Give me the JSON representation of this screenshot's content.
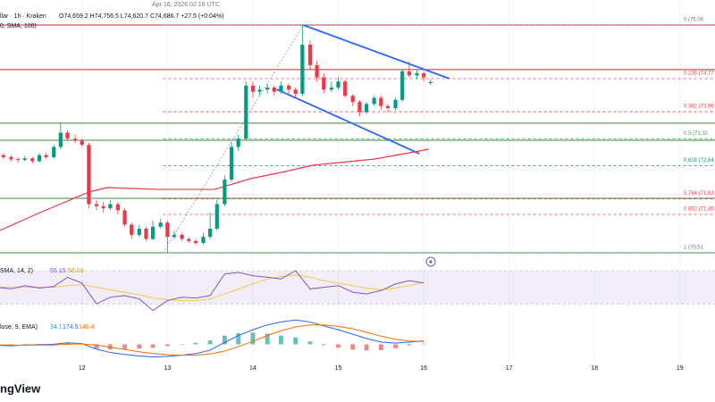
{
  "chart_data": {
    "type": "candlestick",
    "header": {
      "published": "Apr 16, 2026 02:16 UTC",
      "symbol": "llar · 1h · Kraken",
      "ohlc": "O74,659.2 H74,756.5 L74,620.7 C74,686.7 +27.5 (+0.04%)",
      "overlay": "0, SMA, 100)"
    },
    "x": [
      11,
      11.08,
      11.17,
      11.25,
      11.33,
      11.42,
      11.5,
      11.58,
      11.67,
      11.75,
      11.83,
      11.92,
      12,
      12.08,
      12.17,
      12.25,
      12.33,
      12.42,
      12.5,
      12.58,
      12.67,
      12.75,
      12.83,
      12.92,
      13,
      13.08,
      13.17,
      13.25,
      13.33,
      13.42,
      13.5,
      13.58,
      13.67,
      13.75,
      13.83,
      13.92,
      14,
      14.08,
      14.17,
      14.25,
      14.33,
      14.42,
      14.5,
      14.58,
      14.67,
      14.75,
      14.83,
      14.92,
      15,
      15.08,
      15.17,
      15.25,
      15.33,
      15.42,
      15.5,
      15.58,
      15.67,
      15.75,
      15.83,
      15.92,
      16,
      16.08
    ],
    "open": [
      72950,
      72900,
      72850,
      72800,
      72780,
      72820,
      72750,
      72900,
      72850,
      73100,
      73450,
      73300,
      73250,
      73150,
      71700,
      71650,
      71600,
      71700,
      71550,
      71200,
      70950,
      71100,
      70850,
      71150,
      71250,
      70900,
      70950,
      70850,
      70800,
      70750,
      70900,
      71100,
      71700,
      72300,
      73100,
      73300,
      74600,
      74450,
      74500,
      74550,
      74450,
      74600,
      74500,
      74400,
      75600,
      75100,
      74800,
      74500,
      74550,
      74700,
      74350,
      74200,
      73950,
      74150,
      74300,
      74100,
      74050,
      74250,
      74950,
      74850,
      74900,
      74659.2
    ],
    "high": [
      73000,
      72950,
      72900,
      72850,
      72880,
      72850,
      72950,
      72950,
      73150,
      73700,
      73500,
      73400,
      73300,
      73200,
      71800,
      71750,
      71800,
      71750,
      71600,
      71250,
      71200,
      71150,
      71300,
      71350,
      71300,
      71050,
      71000,
      70900,
      70850,
      71000,
      71500,
      71800,
      72400,
      73200,
      73400,
      74700,
      74700,
      74600,
      74650,
      74600,
      74700,
      74650,
      74550,
      76080,
      75700,
      75200,
      74900,
      74700,
      74800,
      74750,
      74400,
      74250,
      74200,
      74350,
      74350,
      74150,
      74300,
      75000,
      75200,
      75000,
      74950,
      74756.5
    ],
    "low": [
      72850,
      72800,
      72750,
      72720,
      72750,
      72700,
      72720,
      72800,
      72820,
      73050,
      73250,
      73200,
      73100,
      71600,
      71550,
      71500,
      71550,
      71450,
      71150,
      70850,
      70900,
      70800,
      70820,
      71100,
      70500,
      70850,
      70800,
      70750,
      70700,
      70720,
      70850,
      71050,
      71650,
      72250,
      73000,
      73250,
      74300,
      74350,
      74400,
      74350,
      74400,
      74400,
      74300,
      74350,
      75000,
      74700,
      74400,
      74450,
      74500,
      74300,
      74100,
      73850,
      73900,
      74100,
      74000,
      73950,
      74000,
      74200,
      74800,
      74750,
      74700,
      74620.7
    ],
    "close": [
      72900,
      72850,
      72800,
      72780,
      72820,
      72750,
      72900,
      72850,
      73100,
      73450,
      73300,
      73250,
      73150,
      71700,
      71650,
      71600,
      71700,
      71550,
      71200,
      70950,
      71100,
      70850,
      71150,
      71250,
      70900,
      70950,
      70850,
      70800,
      70750,
      70900,
      71100,
      71700,
      72300,
      73100,
      73300,
      74600,
      74450,
      74500,
      74550,
      74450,
      74600,
      74500,
      74400,
      75600,
      75100,
      74800,
      74500,
      74550,
      74700,
      74350,
      74200,
      73950,
      74150,
      74300,
      74100,
      74050,
      74250,
      74950,
      74850,
      74900,
      74800,
      74686.7
    ],
    "up_color": "#089981",
    "down_color": "#f23645",
    "xlim": [
      11.04,
      19.41
    ],
    "xticks": [
      12,
      13,
      14,
      15,
      16,
      17,
      18,
      19
    ],
    "ylim": [
      70358,
      76692
    ],
    "sma": {
      "color": "#f23645",
      "x": [
        11.04,
        11.46,
        12.08,
        12.29,
        12.92,
        13.55,
        13.97,
        14.38,
        14.7,
        15.43,
        16.06
      ],
      "values": [
        71057,
        71450,
        71996,
        72105,
        72060,
        72060,
        72324,
        72498,
        72651,
        72804,
        73044
      ]
    },
    "hlines": [
      {
        "value": 76080,
        "color": "#c62828"
      },
      {
        "value": 74990,
        "color": "#c62828"
      },
      {
        "value": 73680,
        "color": "#388e3c"
      },
      {
        "value": 73263,
        "color": "#388e3c"
      },
      {
        "value": 71843,
        "color": "#388e3c"
      },
      {
        "value": 70510,
        "color": "#388e3c"
      }
    ],
    "fib_start": 12.95,
    "fib": [
      {
        "label": "0 (76,08",
        "value": 76080,
        "color": "#787b86"
      },
      {
        "label": "0.236 (74,77",
        "value": 74770,
        "color": "#f23645"
      },
      {
        "label": "0.382 (73,96",
        "value": 73960,
        "color": "#f23645"
      },
      {
        "label": "0.5 (73,30",
        "value": 73300,
        "color": "#4caf50"
      },
      {
        "label": "0.618 (72,64",
        "value": 72640,
        "color": "#089981"
      },
      {
        "label": "0.764 (71,83",
        "value": 71830,
        "color": "#f23645"
      },
      {
        "label": "0.832 (71,45",
        "value": 71450,
        "color": "#f23645"
      },
      {
        "label": "1 (70,51",
        "value": 70510,
        "color": "#787b86"
      }
    ],
    "trendlines": [
      {
        "color": "#2962ff",
        "dashed": false,
        "x": [
          14.59,
          16.3
        ],
        "values": [
          76080,
          74770
        ]
      },
      {
        "color": "#2962ff",
        "dashed": false,
        "x": [
          14.28,
          15.95
        ],
        "values": [
          74507,
          72935
        ]
      },
      {
        "color": "#9598a1",
        "dashed": true,
        "x": [
          12.95,
          14.59
        ],
        "values": [
          70510,
          76080
        ]
      }
    ],
    "rsi": {
      "label": "SMA, 14, 2)",
      "ylim": [
        14,
        84
      ],
      "band": [
        30,
        70
      ],
      "color": "#7e57c2",
      "ma_color": "#f7c530",
      "x": [
        11,
        11.17,
        11.33,
        11.5,
        11.67,
        11.83,
        12,
        12.17,
        12.33,
        12.5,
        12.67,
        12.83,
        13,
        13.17,
        13.33,
        13.5,
        13.67,
        13.83,
        14,
        14.17,
        14.33,
        14.5,
        14.67,
        14.83,
        15,
        15.17,
        15.33,
        15.5,
        15.67,
        15.83,
        16
      ],
      "values": [
        50,
        48,
        52,
        49,
        51,
        62,
        55,
        30,
        38,
        40,
        36,
        22,
        34,
        38,
        37,
        40,
        66,
        68,
        64,
        62,
        60,
        70,
        48,
        50,
        52,
        44,
        42,
        46,
        54,
        58,
        55.15
      ],
      "ma_values": [
        50,
        50,
        50,
        50,
        50,
        52,
        53,
        50,
        47,
        44,
        41,
        37,
        35,
        34,
        34,
        36,
        42,
        48,
        54,
        60,
        63,
        65,
        62,
        58,
        55,
        52,
        49,
        47,
        49,
        52,
        56.03
      ]
    },
    "macd": {
      "label": "lose, 9, EMA)",
      "ylim": [
        -900,
        1400
      ],
      "macd_color": "#2962ff",
      "signal_color": "#ff6d00",
      "hist_color": "#26a69a",
      "hist_neg_color": "#ef5350",
      "x": [
        11,
        11.17,
        11.33,
        11.5,
        11.67,
        11.83,
        12,
        12.17,
        12.33,
        12.5,
        12.67,
        12.83,
        13,
        13.17,
        13.33,
        13.5,
        13.67,
        13.83,
        14,
        14.17,
        14.33,
        14.5,
        14.67,
        14.83,
        15,
        15.17,
        15.33,
        15.5,
        15.67,
        15.83,
        16
      ],
      "histogram": [
        -20,
        -40,
        10,
        20,
        30,
        80,
        20,
        -210,
        -270,
        -250,
        -220,
        -180,
        -90,
        0,
        80,
        200,
        450,
        570,
        600,
        550,
        450,
        350,
        150,
        -50,
        -170,
        -280,
        -320,
        -300,
        -200,
        -60,
        34.1
      ],
      "macd": [
        -50,
        -80,
        -40,
        -20,
        0,
        80,
        40,
        -250,
        -420,
        -520,
        -600,
        -650,
        -620,
        -560,
        -480,
        -300,
        100,
        450,
        750,
        1000,
        1150,
        1250,
        1150,
        950,
        750,
        520,
        300,
        120,
        60,
        110,
        174.5
      ],
      "signal": [
        -30,
        -40,
        -50,
        -40,
        -30,
        0,
        20,
        -40,
        -150,
        -270,
        -380,
        -470,
        -530,
        -560,
        -560,
        -500,
        -350,
        -120,
        150,
        450,
        700,
        900,
        1000,
        1000,
        920,
        800,
        620,
        420,
        260,
        170,
        140.4
      ]
    },
    "brand": "ngView"
  }
}
